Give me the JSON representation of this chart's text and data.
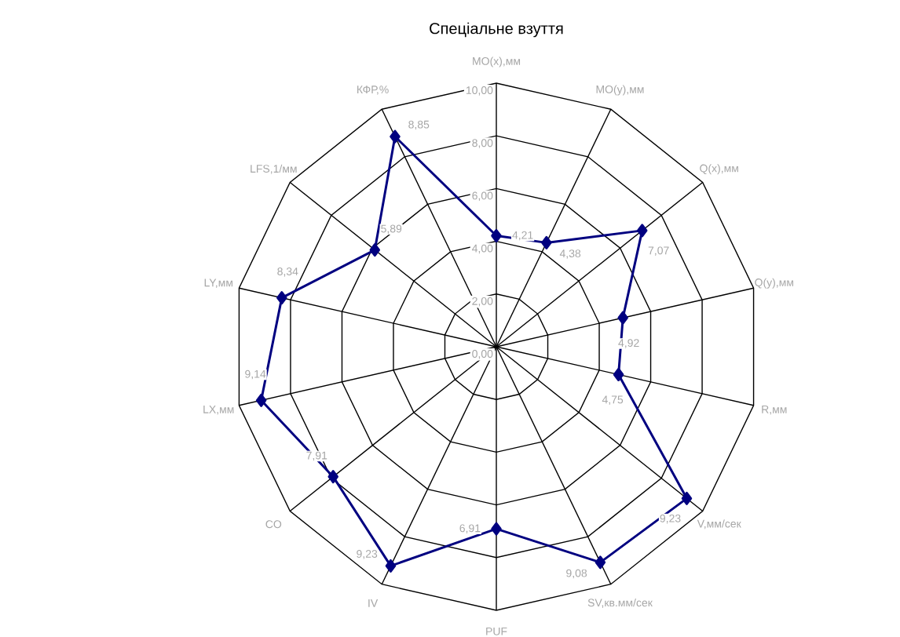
{
  "chart_data": {
    "type": "radar",
    "title": "Спеціальне взуття",
    "categories": [
      "MO(x),мм",
      "MO(y),мм",
      "Q(x),мм",
      "Q(y),мм",
      "R,мм",
      "V,мм/сек",
      "SV,кв.мм/сек",
      "PUF",
      "IV",
      "CO",
      "LX,мм",
      "LY,мм",
      "LFS,1/мм",
      "КФР,%"
    ],
    "series": [
      {
        "color": "#000080",
        "values": [
          4.21,
          4.38,
          7.07,
          4.92,
          4.75,
          9.23,
          9.08,
          6.91,
          9.23,
          7.91,
          9.14,
          8.34,
          5.89,
          8.85
        ],
        "value_labels": [
          "4,21",
          "4,38",
          "7,07",
          "4,92",
          "4,75",
          "9,23",
          "9,08",
          "6,91",
          "9,23",
          "7,91",
          "9,14",
          "8,34",
          "5,89",
          "8,85"
        ]
      }
    ],
    "ylim": [
      0,
      10
    ],
    "yticks": [
      {
        "value": 0,
        "label": "0,00"
      },
      {
        "value": 2,
        "label": "2,00"
      },
      {
        "value": 4,
        "label": "4,00"
      },
      {
        "value": 6,
        "label": "6,00"
      },
      {
        "value": 8,
        "label": "8,00"
      },
      {
        "value": 10,
        "label": "10,00"
      }
    ],
    "grid": true,
    "marker": "diamond"
  }
}
